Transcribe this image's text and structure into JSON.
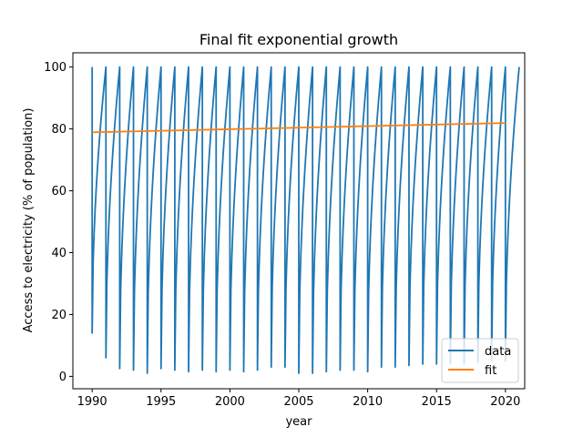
{
  "chart_data": {
    "type": "line",
    "title": "Final fit exponential growth",
    "xlabel": "year",
    "ylabel": "Access to electricity (% of population)",
    "xlim": [
      1988.6,
      2021.4
    ],
    "ylim": [
      -4.0,
      104.6
    ],
    "xticks": [
      1990,
      1995,
      2000,
      2005,
      2010,
      2015,
      2020
    ],
    "yticks": [
      0,
      20,
      40,
      60,
      80,
      100
    ],
    "grid": false,
    "legend": {
      "placement": "lower-right",
      "entries": [
        "data",
        "fit"
      ]
    },
    "series": [
      {
        "name": "data",
        "color": "#1f77b4",
        "cycle": {
          "start_year": 1990,
          "end_year": 2020,
          "peak": 100,
          "minimums": [
            14,
            6,
            2.5,
            2,
            1,
            2.5,
            2,
            1.5,
            2,
            1.5,
            2,
            1.5,
            2,
            3,
            3,
            1,
            1,
            1.5,
            2,
            2,
            1.5,
            3,
            3,
            3.5,
            4,
            4,
            4,
            4,
            4.5,
            5,
            5
          ]
        }
      },
      {
        "name": "fit",
        "color": "#ff7f0e",
        "x": [
          1990,
          1995,
          2000,
          2005,
          2010,
          2015,
          2020
        ],
        "y": [
          78.9,
          79.4,
          79.9,
          80.4,
          80.9,
          81.4,
          81.9
        ]
      }
    ]
  }
}
